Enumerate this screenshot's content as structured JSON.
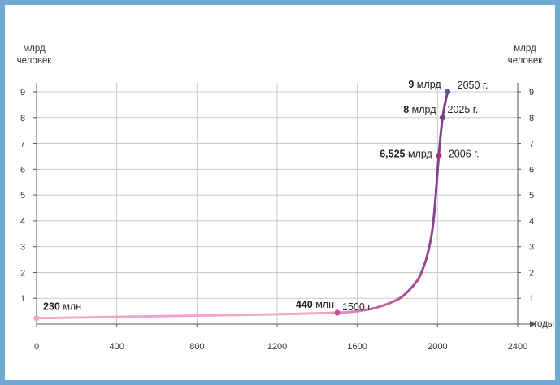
{
  "chart_data": {
    "type": "line",
    "y_axis_title_left": [
      "млрд",
      "человек"
    ],
    "y_axis_title_right": [
      "млрд",
      "человек"
    ],
    "x_axis_title": "годы",
    "xlim": [
      0,
      2400
    ],
    "ylim": [
      0,
      9
    ],
    "x_ticks": [
      0,
      400,
      800,
      1200,
      1600,
      2000,
      2400
    ],
    "y_ticks": [
      1,
      2,
      3,
      4,
      5,
      6,
      7,
      8,
      9
    ],
    "grid": true,
    "series": [
      {
        "x": [
          0,
          400,
          800,
          1200,
          1500,
          1600,
          1700,
          1800,
          1850,
          1900,
          1925,
          1950,
          1975,
          1990,
          2006,
          2025,
          2050
        ],
        "y": [
          0.23,
          0.28,
          0.33,
          0.38,
          0.44,
          0.5,
          0.65,
          0.95,
          1.25,
          1.7,
          2.1,
          2.7,
          3.7,
          4.9,
          6.525,
          8,
          9
        ]
      }
    ],
    "colors": {
      "early": "#f1a6c8",
      "mid": "#c4559c",
      "late": "#7a3f8c",
      "marker_230": "#f1a6c8",
      "marker_1500": "#c4559c",
      "marker_2006": "#a8307a",
      "marker_2025": "#6e4a8e",
      "marker_2050": "#6e4a8e"
    },
    "annotations": [
      {
        "x": 0,
        "y": 0.23,
        "value": "230",
        "unit": " млн",
        "year": ""
      },
      {
        "x": 1500,
        "y": 0.44,
        "value": "440",
        "unit": " млн",
        "year": "1500 г."
      },
      {
        "x": 2006,
        "y": 6.525,
        "value": "6,525",
        "unit": " млрд",
        "year": "2006 г."
      },
      {
        "x": 2025,
        "y": 8,
        "value": "8",
        "unit": " млрд",
        "year": "2025 г."
      },
      {
        "x": 2050,
        "y": 9,
        "value": "9",
        "unit": " млрд",
        "year": "2050 г."
      }
    ]
  }
}
